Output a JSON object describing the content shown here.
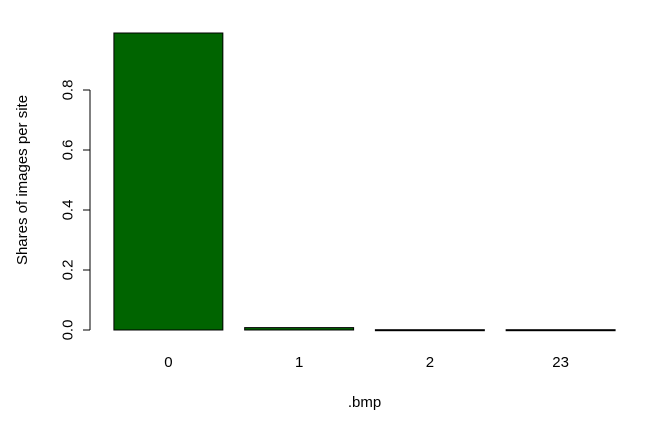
{
  "chart_data": {
    "type": "bar",
    "title": "",
    "xlabel": ".bmp",
    "ylabel": "Shares of images per site",
    "categories": [
      "0",
      "1",
      "2",
      "23"
    ],
    "values": [
      0.99,
      0.008,
      0.001,
      0.001
    ],
    "ylim": [
      0,
      1
    ],
    "yticks": [
      "0.0",
      "0.2",
      "0.4",
      "0.6",
      "0.8"
    ],
    "ytick_values": [
      0,
      0.2,
      0.4,
      0.6,
      0.8
    ],
    "bar_color": "#006400",
    "grid": false,
    "legend": "none"
  }
}
